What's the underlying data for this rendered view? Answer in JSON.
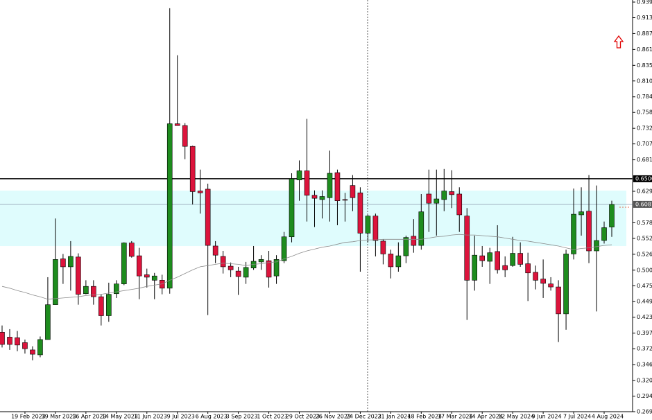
{
  "chart_data": {
    "type": "candlestick",
    "categories": [
      null,
      null,
      null,
      "19 Feb 2023",
      null,
      null,
      null,
      "19 Mar 2023",
      null,
      null,
      null,
      "16 Apr 2023",
      null,
      null,
      null,
      "14 May 2023",
      null,
      null,
      null,
      "11 Jun 2023",
      null,
      null,
      null,
      "9 Jul 2023",
      null,
      null,
      null,
      "6 Aug 2023",
      null,
      null,
      null,
      "3 Sep 2023",
      null,
      null,
      null,
      "1 Oct 2023",
      null,
      null,
      null,
      "29 Oct 2023",
      null,
      null,
      null,
      "26 Nov 2023",
      null,
      null,
      null,
      "24 Dec 2023",
      null,
      null,
      null,
      "21 Jan 2024",
      null,
      null,
      null,
      "18 Feb 2024",
      null,
      null,
      null,
      "17 Mar 2024",
      null,
      null,
      null,
      "14 Apr 2024",
      null,
      null,
      null,
      "12 May 2024",
      null,
      null,
      null,
      "9 Jun 2024",
      null,
      null,
      null,
      "7 Jul 2024",
      null,
      null,
      null,
      "4 Aug 2024",
      null
    ],
    "open": [
      0.399,
      0.391,
      0.39,
      0.382,
      0.37,
      0.362,
      0.387,
      0.444,
      0.519,
      0.506,
      0.522,
      0.462,
      0.474,
      0.457,
      0.426,
      0.462,
      0.478,
      0.545,
      0.524,
      0.493,
      0.484,
      0.484,
      0.471,
      0.74,
      0.737,
      0.703,
      0.63,
      0.633,
      0.54,
      0.523,
      0.507,
      0.499,
      0.489,
      0.504,
      0.514,
      0.516,
      0.491,
      0.516,
      0.555,
      0.648,
      0.663,
      0.623,
      0.616,
      0.619,
      0.66,
      0.616,
      0.639,
      0.627,
      0.561,
      0.589,
      0.548,
      0.527,
      0.506,
      0.524,
      0.556,
      0.541,
      0.625,
      0.61,
      0.616,
      0.629,
      0.625,
      0.589,
      0.484,
      0.524,
      0.515,
      0.531,
      0.508,
      0.508,
      0.528,
      0.511,
      0.497,
      0.486,
      0.478,
      0.473,
      0.429,
      0.527,
      0.591,
      0.597,
      0.532,
      0.549,
      0.571
    ],
    "high": [
      0.41,
      0.404,
      0.401,
      0.387,
      0.376,
      0.392,
      0.489,
      0.585,
      0.527,
      0.548,
      0.528,
      0.484,
      0.484,
      0.461,
      0.48,
      0.484,
      0.546,
      0.548,
      0.537,
      0.503,
      0.496,
      0.493,
      0.929,
      0.852,
      0.741,
      0.704,
      0.665,
      0.642,
      0.548,
      0.532,
      0.513,
      0.506,
      0.514,
      0.54,
      0.525,
      0.532,
      0.525,
      0.563,
      0.659,
      0.68,
      0.748,
      0.631,
      0.631,
      0.696,
      0.665,
      0.627,
      0.656,
      0.636,
      0.591,
      0.593,
      0.551,
      0.534,
      0.546,
      0.557,
      0.584,
      0.625,
      0.665,
      0.665,
      0.666,
      0.664,
      0.636,
      0.602,
      0.557,
      0.54,
      0.537,
      0.574,
      0.523,
      0.555,
      0.546,
      0.529,
      0.508,
      0.518,
      0.489,
      0.484,
      0.534,
      0.634,
      0.636,
      0.656,
      0.639,
      0.58,
      0.614
    ],
    "low": [
      0.374,
      0.37,
      0.368,
      0.364,
      0.353,
      0.358,
      0.387,
      0.444,
      0.478,
      0.467,
      0.444,
      0.461,
      0.444,
      0.41,
      0.416,
      0.455,
      0.476,
      0.521,
      0.453,
      0.472,
      0.453,
      0.461,
      0.462,
      0.737,
      0.682,
      0.608,
      0.593,
      0.427,
      0.512,
      0.495,
      0.489,
      0.46,
      0.478,
      0.501,
      0.501,
      0.472,
      0.478,
      0.512,
      0.546,
      0.614,
      0.58,
      0.571,
      0.585,
      0.58,
      0.574,
      0.58,
      0.597,
      0.498,
      0.546,
      0.523,
      0.51,
      0.487,
      0.498,
      0.512,
      0.529,
      0.534,
      0.563,
      0.557,
      0.597,
      0.602,
      0.563,
      0.419,
      0.467,
      0.506,
      0.478,
      0.495,
      0.489,
      0.506,
      0.506,
      0.45,
      0.469,
      0.455,
      0.467,
      0.383,
      0.403,
      0.518,
      0.557,
      0.512,
      0.433,
      0.544,
      0.555
    ],
    "close": [
      0.379,
      0.379,
      0.378,
      0.372,
      0.363,
      0.387,
      0.444,
      0.518,
      0.506,
      0.523,
      0.461,
      0.474,
      0.457,
      0.426,
      0.461,
      0.478,
      0.545,
      0.523,
      0.491,
      0.489,
      0.491,
      0.471,
      0.74,
      0.737,
      0.703,
      0.629,
      0.627,
      0.541,
      0.525,
      0.506,
      0.501,
      0.49,
      0.505,
      0.515,
      0.518,
      0.489,
      0.518,
      0.555,
      0.65,
      0.663,
      0.623,
      0.618,
      0.621,
      0.659,
      0.614,
      0.615,
      0.619,
      0.561,
      0.589,
      0.549,
      0.527,
      0.506,
      0.524,
      0.554,
      0.541,
      0.596,
      0.61,
      0.617,
      0.63,
      0.624,
      0.591,
      0.484,
      0.525,
      0.516,
      0.529,
      0.501,
      0.501,
      0.528,
      0.51,
      0.496,
      0.484,
      0.479,
      0.473,
      0.429,
      0.527,
      0.592,
      0.596,
      0.532,
      0.549,
      0.57,
      0.608
    ],
    "up_color": "#1e8c1e",
    "down_color": "#dc143c",
    "moving_average": {
      "color": "#8c8c8c",
      "values": [
        0.474,
        0.471,
        0.467,
        0.464,
        0.46,
        0.457,
        0.453,
        0.454,
        0.455,
        0.456,
        0.457,
        0.459,
        0.46,
        0.461,
        0.463,
        0.465,
        0.467,
        0.469,
        0.471,
        0.474,
        0.476,
        0.478,
        0.484,
        0.489,
        0.495,
        0.501,
        0.506,
        0.508,
        0.51,
        0.512,
        0.511,
        0.51,
        0.508,
        0.51,
        0.511,
        0.513,
        0.514,
        0.519,
        0.523,
        0.528,
        0.532,
        0.535,
        0.538,
        0.54,
        0.543,
        0.546,
        0.547,
        0.549,
        0.55,
        0.55,
        0.551,
        0.551,
        0.551,
        0.551,
        0.551,
        0.551,
        0.553,
        0.555,
        0.556,
        0.558,
        0.559,
        0.558,
        0.558,
        0.557,
        0.556,
        0.555,
        0.553,
        0.551,
        0.549,
        0.548,
        0.546,
        0.544,
        0.542,
        0.54,
        0.537,
        0.534,
        0.536,
        0.537,
        0.539,
        0.541,
        0.542
      ]
    },
    "ylim": [
      0.269,
      0.9424
    ],
    "yticks": [
      {
        "value": 0.939,
        "label": "0.9390"
      },
      {
        "value": 0.9135,
        "label": "0.9135"
      },
      {
        "value": 0.8875,
        "label": "0.8875"
      },
      {
        "value": 0.8615,
        "label": "0.8615"
      },
      {
        "value": 0.8355,
        "label": "0.8355"
      },
      {
        "value": 0.81,
        "label": "0.8100"
      },
      {
        "value": 0.784,
        "label": "0.7840"
      },
      {
        "value": 0.7585,
        "label": "0.7585"
      },
      {
        "value": 0.7325,
        "label": "0.7325"
      },
      {
        "value": 0.707,
        "label": "0.7070"
      },
      {
        "value": 0.681,
        "label": "0.6810"
      },
      {
        "value": 0.6295,
        "label": "0.6295"
      },
      {
        "value": 0.578,
        "label": "0.5780"
      },
      {
        "value": 0.5525,
        "label": "0.5525"
      },
      {
        "value": 0.5265,
        "label": "0.5265"
      },
      {
        "value": 0.5005,
        "label": "0.5005"
      },
      {
        "value": 0.475,
        "label": "0.4750"
      },
      {
        "value": 0.449,
        "label": "0.4490"
      },
      {
        "value": 0.4235,
        "label": "0.4235"
      },
      {
        "value": 0.3975,
        "label": "0.3975"
      },
      {
        "value": 0.372,
        "label": "0.3720"
      },
      {
        "value": 0.346,
        "label": "0.3460"
      },
      {
        "value": 0.32,
        "label": "0.3200"
      },
      {
        "value": 0.2945,
        "label": "0.2945"
      },
      {
        "value": 0.269,
        "label": "0.2690"
      }
    ],
    "hlines": [
      {
        "value": 0.65,
        "label": "0.6500",
        "color": "#000000",
        "box": "#000000"
      },
      {
        "value": 0.6081,
        "label": "0.6081",
        "color": "#9fb0c0",
        "box": "#555555"
      }
    ],
    "zone": {
      "from": 0.5399,
      "to": 0.6306,
      "color": "#dffcfd"
    }
  }
}
